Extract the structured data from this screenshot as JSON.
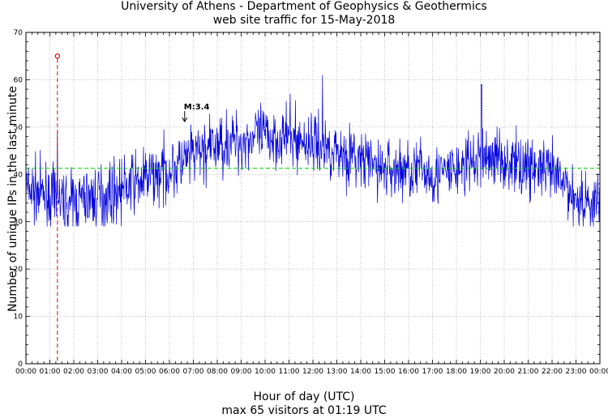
{
  "title_line1": "University of Athens - Department of Geophysics & Geothermics",
  "title_line2": "web site traffic for 15-May-2018",
  "xlabel": "Hour of day (UTC)",
  "footer": "max 65 visitors at 01:19 UTC",
  "ylabel": "Number of unique IPs in the last minute",
  "chart_data": {
    "type": "line",
    "xlim": [
      0,
      24
    ],
    "ylim": [
      0,
      70
    ],
    "grid": true,
    "x_tick_labels": [
      "00:00",
      "01:00",
      "02:00",
      "03:00",
      "04:00",
      "05:00",
      "06:00",
      "07:00",
      "08:00",
      "09:00",
      "10:00",
      "11:00",
      "12:00",
      "13:00",
      "14:00",
      "15:00",
      "16:00",
      "17:00",
      "18:00",
      "19:00",
      "20:00",
      "21:00",
      "22:00",
      "23:00",
      "00:00"
    ],
    "y_ticks": [
      0,
      10,
      20,
      30,
      40,
      50,
      60,
      70
    ],
    "mean_line": 41.3,
    "max_marker": {
      "x": 1.3167,
      "y": 65
    },
    "event_label": {
      "text": "M:3.4",
      "x": 6.67,
      "y": 52
    },
    "colors": {
      "series": "#0000dd",
      "mean": "#00cc00",
      "max": "#dd0000"
    },
    "series": {
      "x": [
        0,
        0.5,
        1,
        1.5,
        2,
        2.5,
        3,
        3.5,
        4,
        4.5,
        5,
        5.5,
        6,
        6.5,
        7,
        7.5,
        8,
        8.5,
        9,
        9.5,
        10,
        10.5,
        11,
        11.5,
        12,
        12.5,
        13,
        13.5,
        14,
        14.5,
        15,
        15.5,
        16,
        16.5,
        17,
        17.5,
        18,
        18.5,
        19,
        19.5,
        20,
        20.5,
        21,
        21.5,
        22,
        22.5,
        23,
        23.5,
        24
      ],
      "y": [
        37,
        36,
        35,
        34,
        34,
        35,
        35,
        36,
        37,
        38,
        39,
        40,
        41,
        42,
        44,
        45,
        46,
        47,
        47,
        48,
        48,
        48,
        48,
        47,
        47,
        46,
        45,
        44,
        43,
        42,
        41,
        41,
        41,
        41,
        40,
        40,
        41,
        42,
        43,
        44,
        43,
        42,
        42,
        41,
        40,
        38,
        35,
        34,
        34
      ]
    }
  }
}
